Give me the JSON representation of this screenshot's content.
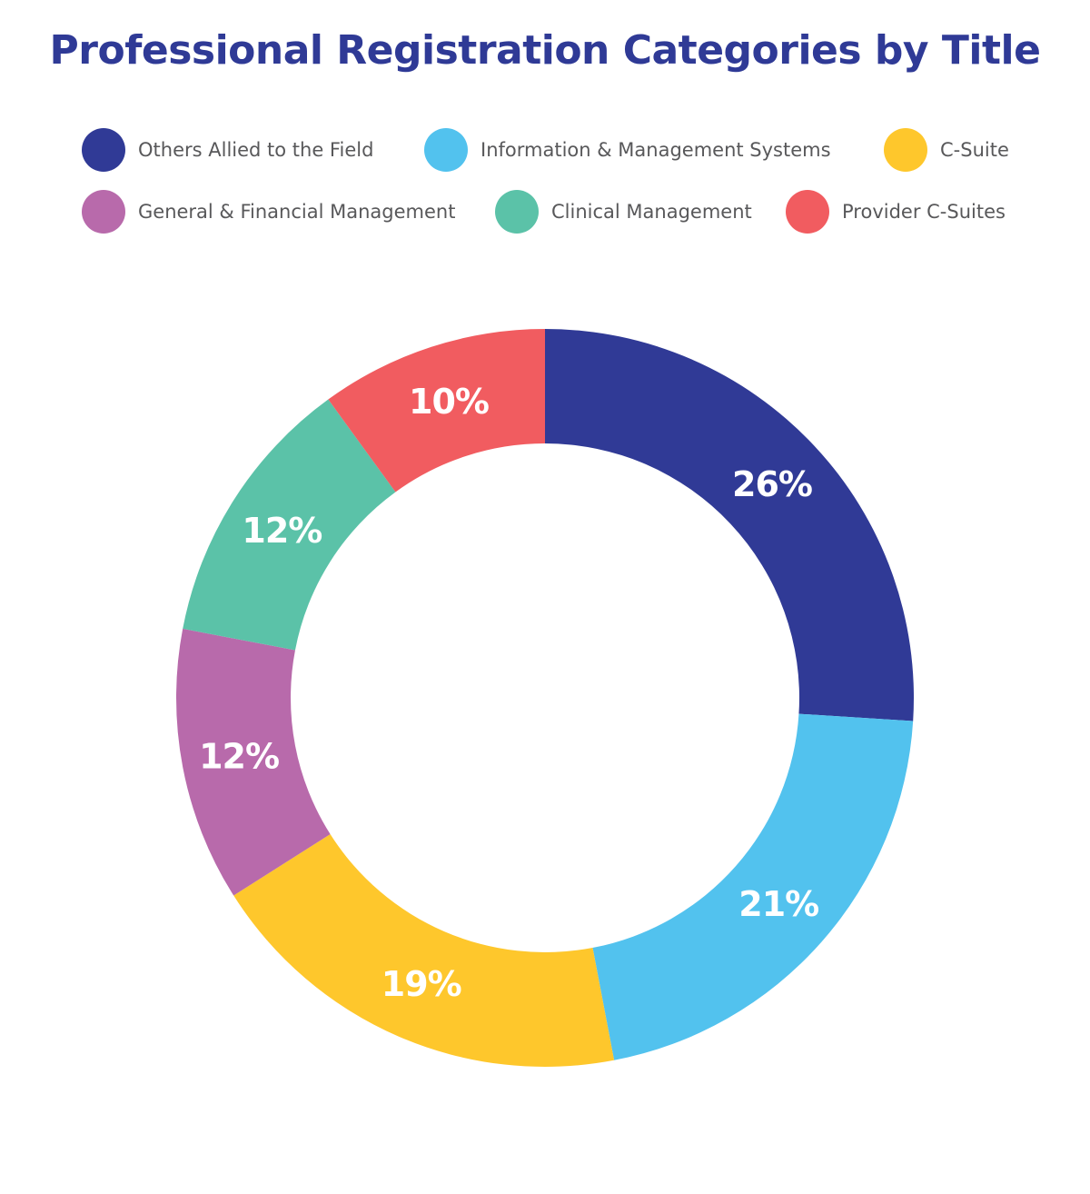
{
  "chart_data": {
    "type": "pie",
    "title": "Professional Registration Categories by Title",
    "categories": [
      "Others Allied to the Field",
      "Information & Management Systems",
      "C-Suite",
      "General & Financial Management",
      "Clinical Management",
      "Provider C-Suites"
    ],
    "values": [
      26,
      21,
      19,
      12,
      12,
      10
    ],
    "value_labels": [
      "26%",
      "21%",
      "19%",
      "12%",
      "12%",
      "10%"
    ],
    "colors": [
      "#303a96",
      "#52c2ee",
      "#fec72c",
      "#b86aab",
      "#5bc2a8",
      "#f15c60"
    ],
    "donut": true,
    "legend_position": "top",
    "legend": [
      {
        "label": "Others Allied to the Field",
        "color": "#303a96"
      },
      {
        "label": "Information & Management Systems",
        "color": "#52c2ee"
      },
      {
        "label": "C-Suite",
        "color": "#fec72c"
      },
      {
        "label": "General & Financial Management",
        "color": "#b86aab"
      },
      {
        "label": "Clinical Management",
        "color": "#5bc2a8"
      },
      {
        "label": "Provider C-Suites",
        "color": "#f15c60"
      }
    ]
  }
}
